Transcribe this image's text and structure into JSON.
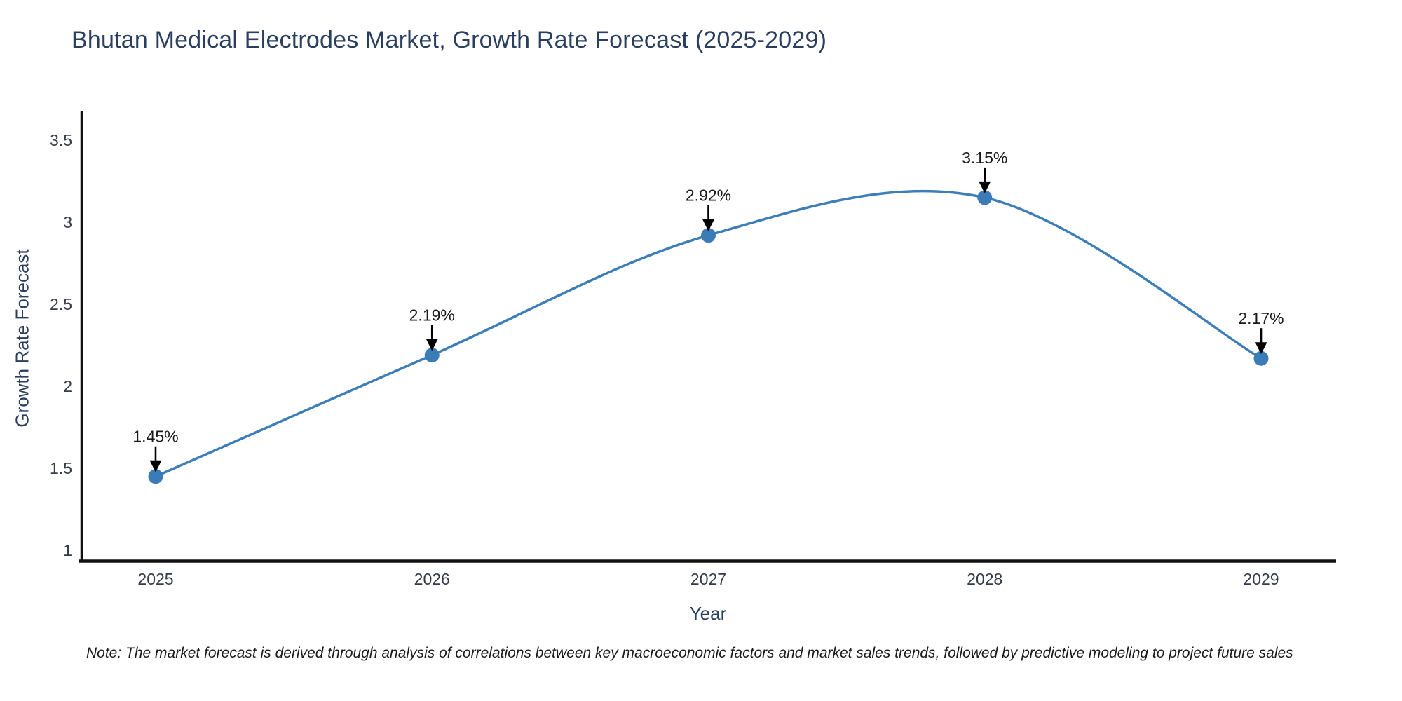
{
  "title": "Bhutan Medical Electrodes Market, Growth Rate Forecast (2025-2029)",
  "note": "Note: The market forecast is derived through analysis of correlations between key macroeconomic factors and market sales trends, followed by predictive modeling to project future sales",
  "chart_data": {
    "type": "line",
    "title": "Bhutan Medical Electrodes Market, Growth Rate Forecast (2025-2029)",
    "xlabel": "Year",
    "ylabel": "Growth Rate Forecast",
    "categories": [
      "2025",
      "2026",
      "2027",
      "2028",
      "2029"
    ],
    "values": [
      1.45,
      2.19,
      2.92,
      3.15,
      2.17
    ],
    "point_labels": [
      "1.45%",
      "2.19%",
      "2.92%",
      "3.15%",
      "2.17%"
    ],
    "yticks": [
      3.5,
      3,
      2.5,
      2,
      1.5,
      1
    ],
    "ylim": [
      0.93,
      3.68
    ],
    "grid": false,
    "legend": "none",
    "line_shape": "spline",
    "marker": "circle",
    "annotation_arrow": "down",
    "colors": {
      "line": "#3d7eb8",
      "marker": "#3b7cb8",
      "axis": "#111111",
      "title": "#2a3f5f",
      "axis_title": "#2a3f5f",
      "tick": "#343b4a",
      "annotation": "#1a1a1a",
      "note": "#1a1a1a",
      "arrow": "#000000"
    }
  }
}
